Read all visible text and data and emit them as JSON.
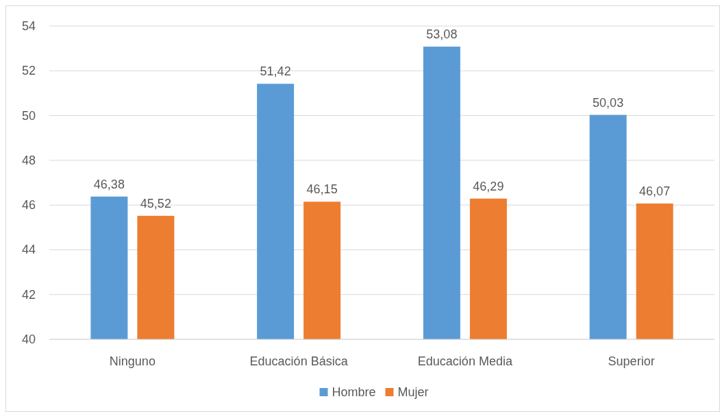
{
  "chart_data": {
    "type": "bar",
    "categories": [
      "Ninguno",
      "Educación Básica",
      "Educación Media",
      "Superior"
    ],
    "series": [
      {
        "name": "Hombre",
        "color": "#5b9bd5",
        "values": [
          46.38,
          51.42,
          53.08,
          50.03
        ],
        "value_labels": [
          "46,38",
          "51,42",
          "53,08",
          "50,03"
        ]
      },
      {
        "name": "Mujer",
        "color": "#ed7d31",
        "values": [
          45.52,
          46.15,
          46.29,
          46.07
        ],
        "value_labels": [
          "45,52",
          "46,15",
          "46,29",
          "46,07"
        ]
      }
    ],
    "ylim": [
      40,
      54
    ],
    "yticks": [
      40,
      42,
      44,
      46,
      48,
      50,
      52,
      54
    ],
    "grid": "y",
    "legend": "bottom"
  }
}
